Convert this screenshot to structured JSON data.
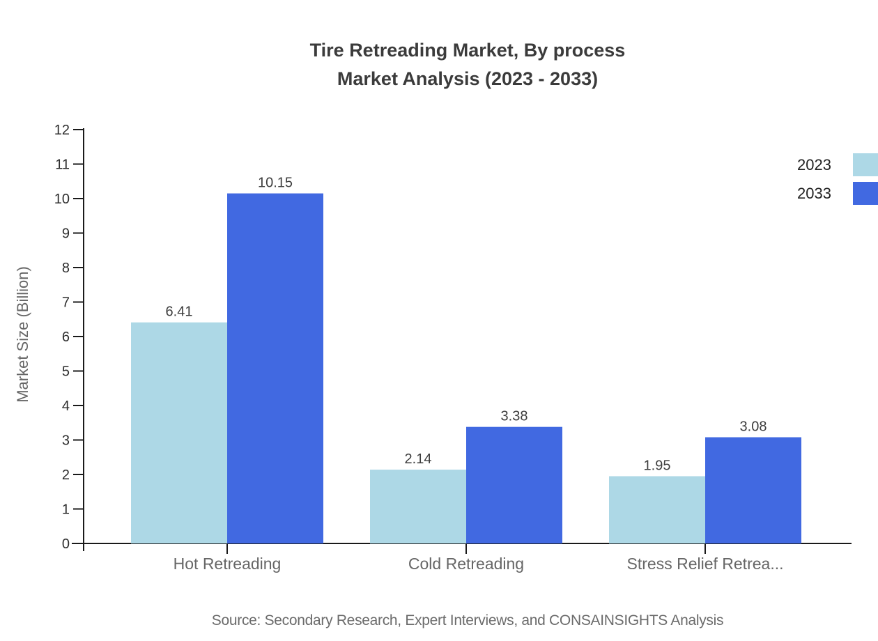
{
  "title": {
    "line1": "Tire Retreading Market, By process",
    "line2": "Market Analysis (2023 - 2033)"
  },
  "source": "Source: Secondary Research, Expert Interviews, and CONSAINSIGHTS Analysis",
  "chart_data": {
    "type": "bar",
    "title": "Tire Retreading Market, By process Market Analysis (2023 - 2033)",
    "categories": [
      "Hot Retreading",
      "Cold Retreading",
      "Stress Relief Retrea..."
    ],
    "series": [
      {
        "name": "2023",
        "color": "#ADD8E6",
        "values": [
          6.41,
          2.14,
          1.95
        ]
      },
      {
        "name": "2033",
        "color": "#4169E1",
        "values": [
          10.15,
          3.38,
          3.08
        ]
      }
    ],
    "xlabel": "",
    "ylabel": "Market Size (Billion)",
    "ylim": [
      0,
      12
    ],
    "ytick_step": 1,
    "yticks": [
      0,
      1,
      2,
      3,
      4,
      5,
      6,
      7,
      8,
      9,
      10,
      11,
      12
    ],
    "grid": false,
    "legend_position": "top-right",
    "value_labels_shown": true
  },
  "colors": {
    "series_2023": "#ADD8E6",
    "series_2033": "#4169E1",
    "title_text": "#3b3b3b",
    "axis_line": "#1a1a1a",
    "ytick_text": "#2d2d2d",
    "category_text": "#666666",
    "value_label_text": "#3d3d3d",
    "legend_text": "#222222",
    "source_text": "#6b6b6b",
    "background": "#ffffff"
  }
}
